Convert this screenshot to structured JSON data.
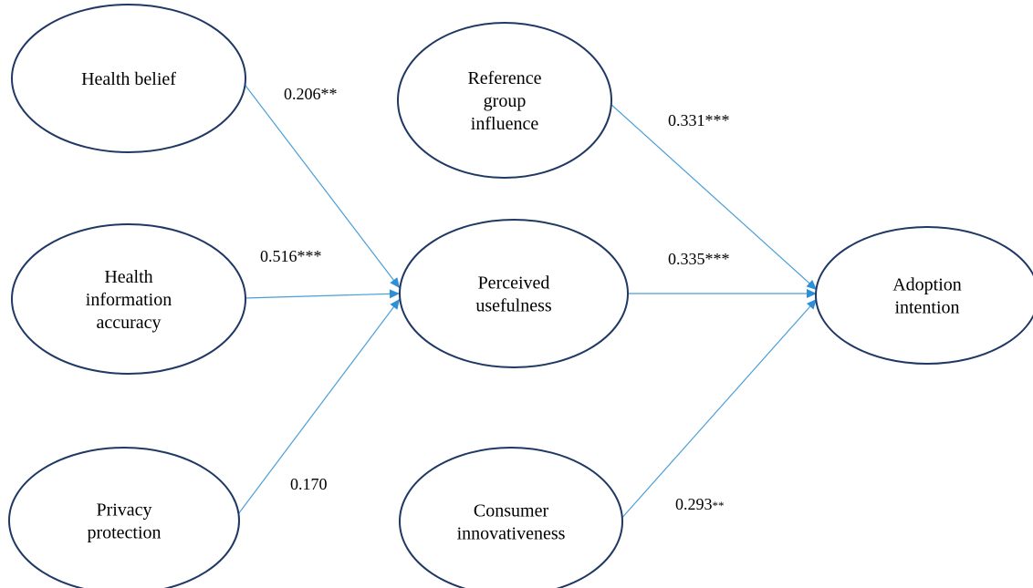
{
  "nodes": [
    {
      "id": "health-belief",
      "lines": [
        "Health belief"
      ]
    },
    {
      "id": "health-information-accuracy",
      "lines": [
        "Health",
        "information",
        "accuracy"
      ]
    },
    {
      "id": "privacy-protection",
      "lines": [
        "Privacy",
        "protection"
      ]
    },
    {
      "id": "reference-group-influence",
      "lines": [
        "Reference",
        "group",
        "influence"
      ]
    },
    {
      "id": "perceived-usefulness",
      "lines": [
        "Perceived",
        "usefulness"
      ]
    },
    {
      "id": "consumer-innovativeness",
      "lines": [
        "Consumer",
        "innovativeness"
      ]
    },
    {
      "id": "adoption-intention",
      "lines": [
        "Adoption",
        "intention"
      ]
    }
  ],
  "edges": [
    {
      "id": "hb-pu",
      "from": "health-belief",
      "to": "perceived-usefulness",
      "coef": "0.206",
      "sig": "**",
      "sig_small": false
    },
    {
      "id": "hia-pu",
      "from": "health-information-accuracy",
      "to": "perceived-usefulness",
      "coef": "0.516",
      "sig": "***",
      "sig_small": false
    },
    {
      "id": "pp-pu",
      "from": "privacy-protection",
      "to": "perceived-usefulness",
      "coef": "0.170",
      "sig": "",
      "sig_small": false
    },
    {
      "id": "rgi-ai",
      "from": "reference-group-influence",
      "to": "adoption-intention",
      "coef": "0.331",
      "sig": "***",
      "sig_small": false
    },
    {
      "id": "pu-ai",
      "from": "perceived-usefulness",
      "to": "adoption-intention",
      "coef": "0.335",
      "sig": "***",
      "sig_small": false
    },
    {
      "id": "ci-ai",
      "from": "consumer-innovativeness",
      "to": "adoption-intention",
      "coef": "0.293",
      "sig": "**",
      "sig_small": true
    }
  ]
}
